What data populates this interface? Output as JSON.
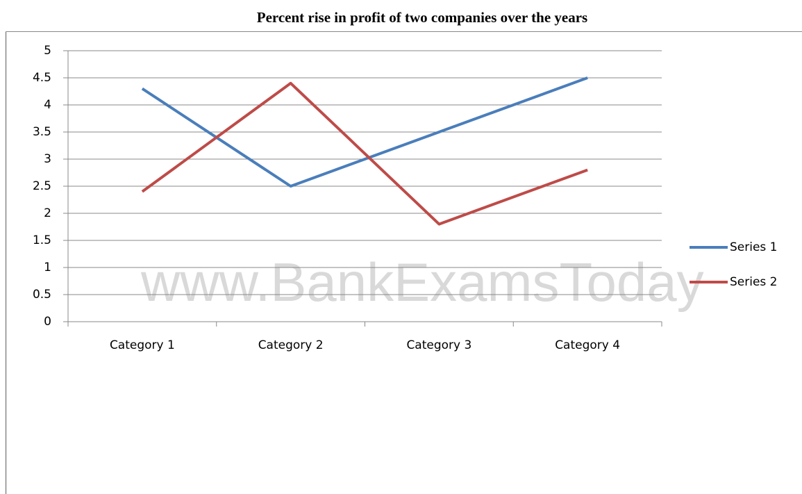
{
  "chart_data": {
    "type": "line",
    "title": "Percent rise in profit of two companies over the years",
    "watermark": "www.BankExamsToday",
    "categories": [
      "Category 1",
      "Category 2",
      "Category 3",
      "Category 4"
    ],
    "series": [
      {
        "name": "Series 1",
        "color": "#4a7ebb",
        "values": [
          4.3,
          2.5,
          3.5,
          4.5
        ]
      },
      {
        "name": "Series 2",
        "color": "#be4b48",
        "values": [
          2.4,
          4.4,
          1.8,
          2.8
        ]
      }
    ],
    "ylim": [
      0,
      5
    ],
    "yticks": [
      0,
      0.5,
      1,
      1.5,
      2,
      2.5,
      3,
      3.5,
      4,
      4.5,
      5
    ],
    "grid": true,
    "legend": "right"
  }
}
